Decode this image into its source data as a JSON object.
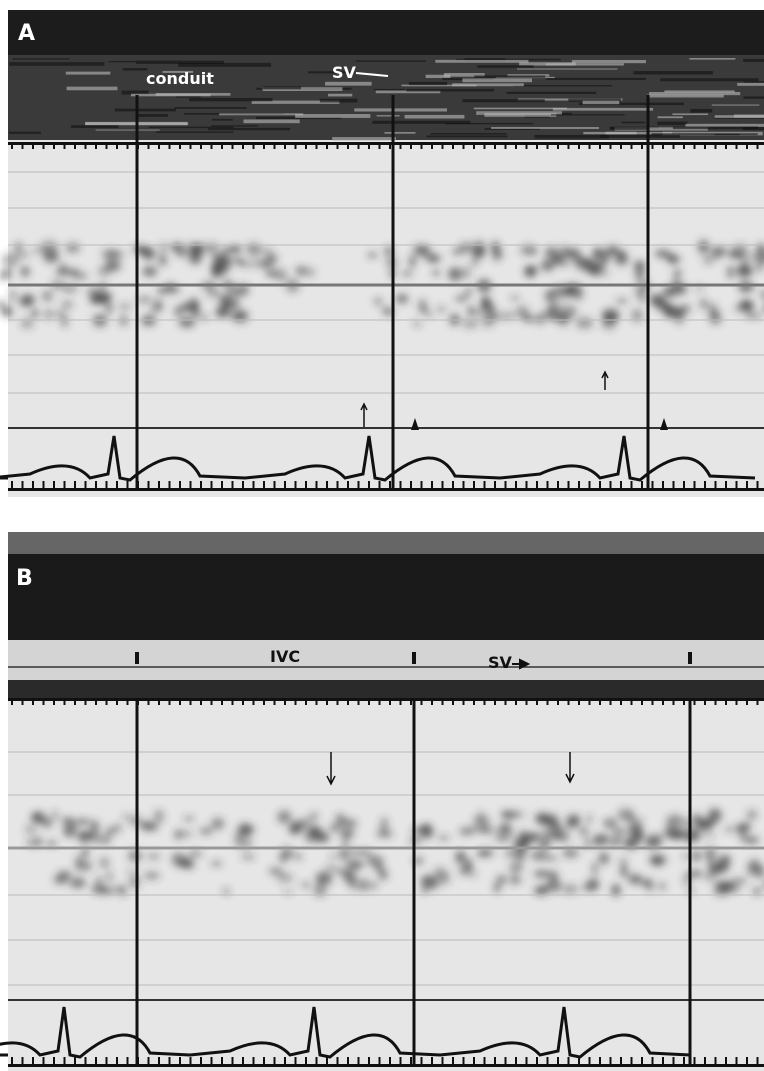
{
  "panel_a": {
    "label": "A",
    "annotations": [
      "conduit",
      "SV"
    ]
  },
  "panel_b": {
    "label": "B",
    "annotations": [
      "IVC",
      "SV"
    ]
  }
}
